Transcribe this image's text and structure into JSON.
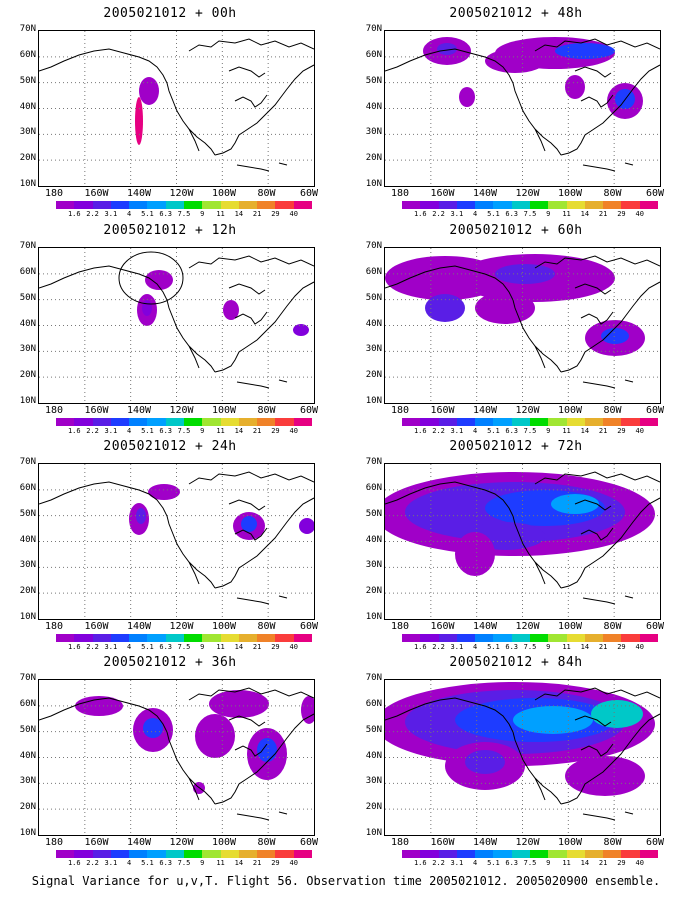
{
  "footer": "Signal Variance for u,v,T. Flight 56. Observation time 2005021012. 2005020900 ensemble.",
  "lat_labels": [
    "70N",
    "60N",
    "50N",
    "40N",
    "30N",
    "20N",
    "10N"
  ],
  "lon_labels": [
    "180",
    "160W",
    "140W",
    "120W",
    "100W",
    "80W",
    "60W"
  ],
  "colorbar": {
    "labels": [
      "1.6",
      "2.2",
      "3.1",
      "4",
      "5.1",
      "6.3",
      "7.5",
      "9",
      "11",
      "14",
      "21",
      "29",
      "40"
    ],
    "colors": [
      "#a000c8",
      "#8200dc",
      "#5a1ee6",
      "#1e3cff",
      "#0080ff",
      "#00a0ff",
      "#00c8c8",
      "#00dc00",
      "#a0e632",
      "#e6dc32",
      "#e6af2d",
      "#f08228",
      "#fa3c3c",
      "#e60082"
    ]
  },
  "panels": [
    {
      "title": "2005021012 + 00h",
      "lead": "00h"
    },
    {
      "title": "2005021012 + 48h",
      "lead": "48h"
    },
    {
      "title": "2005021012 + 12h",
      "lead": "12h"
    },
    {
      "title": "2005021012 + 60h",
      "lead": "60h"
    },
    {
      "title": "2005021012 + 24h",
      "lead": "24h"
    },
    {
      "title": "2005021012 + 72h",
      "lead": "72h"
    },
    {
      "title": "2005021012 + 36h",
      "lead": "36h"
    },
    {
      "title": "2005021012 + 84h",
      "lead": "84h"
    }
  ]
}
